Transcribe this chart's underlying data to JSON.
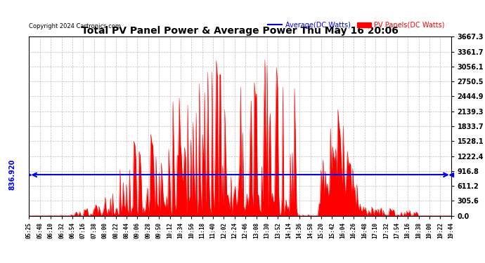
{
  "title": "Total PV Panel Power & Average Power Thu May 16 20:06",
  "copyright": "Copyright 2024 Cartronics.com",
  "legend_avg": "Average(DC Watts)",
  "legend_pv": "PV Panels(DC Watts)",
  "avg_value": 836.92,
  "y_max": 3667.3,
  "y_min": 0.0,
  "y_ticks": [
    0.0,
    305.6,
    611.2,
    916.8,
    1222.4,
    1528.1,
    1833.7,
    2139.3,
    2444.9,
    2750.5,
    3056.1,
    3361.7,
    3667.3
  ],
  "x_labels": [
    "05:25",
    "05:48",
    "06:10",
    "06:32",
    "06:54",
    "07:16",
    "07:38",
    "08:00",
    "08:22",
    "08:44",
    "09:06",
    "09:28",
    "09:50",
    "10:12",
    "10:34",
    "10:56",
    "11:18",
    "11:40",
    "12:02",
    "12:24",
    "12:46",
    "13:08",
    "13:30",
    "13:52",
    "14:14",
    "14:36",
    "14:58",
    "15:20",
    "15:42",
    "16:04",
    "16:26",
    "16:48",
    "17:10",
    "17:32",
    "17:54",
    "18:16",
    "18:38",
    "19:00",
    "19:22",
    "19:44"
  ],
  "background_color": "#ffffff",
  "fill_color": "#ff0000",
  "avg_line_color": "#0000ff",
  "grid_color": "#b0b0b0",
  "title_color": "#000000",
  "copyright_color": "#000000",
  "tick_label_color": "#000000",
  "right_tick_color": "#000000",
  "avg_label_color": "#0000ff",
  "legend_avg_color": "#0000ff",
  "legend_pv_color": "#ff0000"
}
